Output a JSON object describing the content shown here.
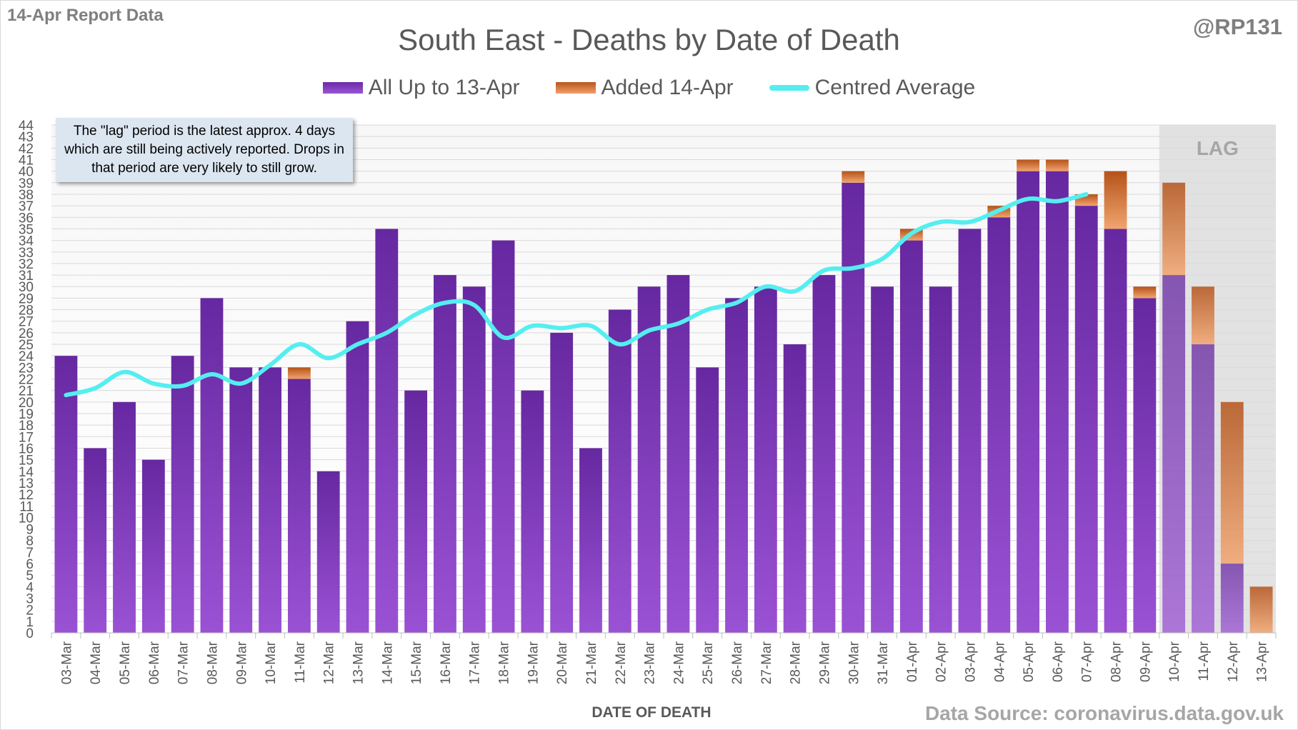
{
  "header": {
    "report_date": "14-Apr Report Data",
    "handle": "@RP131"
  },
  "annotation": "The \"lag\" period is the latest approx. 4 days which are still being actively reported. Drops in that period are very likely to still grow.",
  "source": "Data Source: coronavirus.data.gov.uk",
  "colors": {
    "base_top": "#6a2aa6",
    "base_bottom": "#9b55d6",
    "added_top": "#b8561a",
    "added_bottom": "#f0a06a",
    "average": "#55eef0",
    "lag_shade": "#d9d9d9"
  },
  "chart_data": {
    "type": "bar",
    "title": "South East - Deaths by Date of Death",
    "xlabel": "DATE OF DEATH",
    "ylabel": "",
    "ylim": [
      0,
      44
    ],
    "stacked": true,
    "grid": true,
    "legend_position": "top",
    "lag_label": "LAG",
    "lag_start_category": "10-Apr",
    "categories": [
      "03-Mar",
      "04-Mar",
      "05-Mar",
      "06-Mar",
      "07-Mar",
      "08-Mar",
      "09-Mar",
      "10-Mar",
      "11-Mar",
      "12-Mar",
      "13-Mar",
      "14-Mar",
      "15-Mar",
      "16-Mar",
      "17-Mar",
      "18-Mar",
      "19-Mar",
      "20-Mar",
      "21-Mar",
      "22-Mar",
      "23-Mar",
      "24-Mar",
      "25-Mar",
      "26-Mar",
      "27-Mar",
      "28-Mar",
      "29-Mar",
      "30-Mar",
      "31-Mar",
      "01-Apr",
      "02-Apr",
      "03-Apr",
      "04-Apr",
      "05-Apr",
      "06-Apr",
      "07-Apr",
      "08-Apr",
      "09-Apr",
      "10-Apr",
      "11-Apr",
      "12-Apr",
      "13-Apr"
    ],
    "series": [
      {
        "name": "All Up to 13-Apr",
        "kind": "bar",
        "values": [
          24,
          16,
          20,
          15,
          24,
          29,
          23,
          23,
          22,
          14,
          27,
          35,
          21,
          31,
          30,
          34,
          21,
          26,
          16,
          28,
          30,
          31,
          23,
          29,
          30,
          25,
          31,
          39,
          30,
          34,
          30,
          35,
          36,
          40,
          40,
          37,
          35,
          29,
          31,
          25,
          6,
          0
        ]
      },
      {
        "name": "Added 14-Apr",
        "kind": "bar",
        "values": [
          0,
          0,
          0,
          0,
          0,
          0,
          0,
          0,
          1,
          0,
          0,
          0,
          0,
          0,
          0,
          0,
          0,
          0,
          0,
          0,
          0,
          0,
          0,
          0,
          0,
          0,
          0,
          1,
          0,
          1,
          0,
          0,
          1,
          1,
          1,
          1,
          5,
          1,
          8,
          5,
          14,
          4
        ]
      },
      {
        "name": "Centred Average",
        "kind": "line",
        "values": [
          20.6,
          21.2,
          22.6,
          21.6,
          21.4,
          22.4,
          21.6,
          23.2,
          25.0,
          23.8,
          25.0,
          26.0,
          27.6,
          28.6,
          28.4,
          25.6,
          26.6,
          26.4,
          26.6,
          25.0,
          26.2,
          26.8,
          28.0,
          28.6,
          30.0,
          29.6,
          31.4,
          31.6,
          32.4,
          34.6,
          35.6,
          35.6,
          36.6,
          37.6,
          37.4,
          38.0,
          null,
          null,
          null,
          null,
          null,
          null
        ]
      }
    ]
  }
}
